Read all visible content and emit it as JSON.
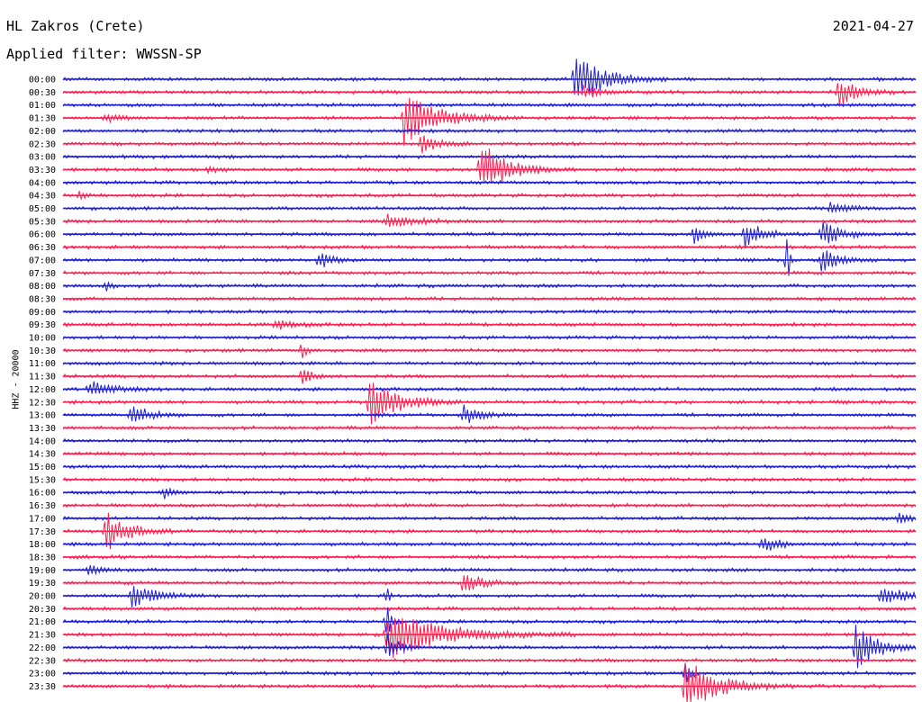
{
  "header": {
    "station": "HL Zakros (Crete)",
    "date": "2021-04-27",
    "filter": "Applied filter: WWSSN-SP"
  },
  "chart_data": {
    "type": "line",
    "title": "HL Zakros (Crete)",
    "subtitle": "Applied filter: WWSSN-SP",
    "date": "2021-04-27",
    "ylabel": "HHZ - 20000",
    "xlabel": "",
    "colors": {
      "even_row": "#1f1fd6",
      "odd_row": "#ff1f4f"
    },
    "minutes_per_row": 30,
    "rows": [
      {
        "time": "00:00",
        "events": [
          {
            "t": 0.6,
            "a": 1.0,
            "d": 0.05
          }
        ]
      },
      {
        "time": "00:30",
        "events": [
          {
            "t": 0.61,
            "a": 0.25,
            "d": 0.03
          },
          {
            "t": 0.91,
            "a": 0.55,
            "d": 0.03
          }
        ]
      },
      {
        "time": "01:00",
        "events": []
      },
      {
        "time": "01:30",
        "events": [
          {
            "t": 0.4,
            "a": 1.0,
            "d": 0.06
          },
          {
            "t": 0.05,
            "a": 0.15,
            "d": 0.02
          }
        ]
      },
      {
        "time": "02:00",
        "events": []
      },
      {
        "time": "02:30",
        "events": [
          {
            "t": 0.42,
            "a": 0.35,
            "d": 0.03
          }
        ]
      },
      {
        "time": "03:00",
        "events": []
      },
      {
        "time": "03:30",
        "events": [
          {
            "t": 0.49,
            "a": 1.0,
            "d": 0.05
          },
          {
            "t": 0.17,
            "a": 0.15,
            "d": 0.02
          }
        ]
      },
      {
        "time": "04:00",
        "events": []
      },
      {
        "time": "04:30",
        "events": [
          {
            "t": 0.02,
            "a": 0.2,
            "d": 0.01
          }
        ]
      },
      {
        "time": "05:00",
        "events": [
          {
            "t": 0.9,
            "a": 0.2,
            "d": 0.03
          }
        ]
      },
      {
        "time": "05:30",
        "events": [
          {
            "t": 0.38,
            "a": 0.25,
            "d": 0.05
          }
        ]
      },
      {
        "time": "06:00",
        "events": [
          {
            "t": 0.8,
            "a": 0.55,
            "d": 0.03
          },
          {
            "t": 0.89,
            "a": 0.55,
            "d": 0.03
          },
          {
            "t": 0.74,
            "a": 0.3,
            "d": 0.02
          }
        ]
      },
      {
        "time": "06:30",
        "events": []
      },
      {
        "time": "07:00",
        "events": [
          {
            "t": 0.3,
            "a": 0.35,
            "d": 0.02
          },
          {
            "t": 0.89,
            "a": 0.45,
            "d": 0.03
          },
          {
            "t": 0.85,
            "a": 1.0,
            "d": 0.003
          }
        ]
      },
      {
        "time": "07:30",
        "events": []
      },
      {
        "time": "08:00",
        "events": [
          {
            "t": 0.05,
            "a": 0.25,
            "d": 0.01
          }
        ]
      },
      {
        "time": "08:30",
        "events": []
      },
      {
        "time": "09:00",
        "events": []
      },
      {
        "time": "09:30",
        "events": [
          {
            "t": 0.25,
            "a": 0.2,
            "d": 0.03
          }
        ]
      },
      {
        "time": "10:00",
        "events": []
      },
      {
        "time": "10:30",
        "events": [
          {
            "t": 0.28,
            "a": 0.35,
            "d": 0.01
          }
        ]
      },
      {
        "time": "11:00",
        "events": []
      },
      {
        "time": "11:30",
        "events": [
          {
            "t": 0.28,
            "a": 0.3,
            "d": 0.02
          }
        ]
      },
      {
        "time": "12:00",
        "events": [
          {
            "t": 0.03,
            "a": 0.3,
            "d": 0.04
          }
        ]
      },
      {
        "time": "12:30",
        "events": [
          {
            "t": 0.36,
            "a": 0.9,
            "d": 0.05
          }
        ]
      },
      {
        "time": "13:00",
        "events": [
          {
            "t": 0.08,
            "a": 0.45,
            "d": 0.03
          },
          {
            "t": 0.47,
            "a": 0.35,
            "d": 0.03
          }
        ]
      },
      {
        "time": "13:30",
        "events": []
      },
      {
        "time": "14:00",
        "events": []
      },
      {
        "time": "14:30",
        "events": []
      },
      {
        "time": "15:00",
        "events": []
      },
      {
        "time": "15:30",
        "events": []
      },
      {
        "time": "16:00",
        "events": [
          {
            "t": 0.12,
            "a": 0.3,
            "d": 0.01
          }
        ]
      },
      {
        "time": "16:30",
        "events": []
      },
      {
        "time": "17:00",
        "events": [
          {
            "t": 0.98,
            "a": 0.25,
            "d": 0.02
          }
        ]
      },
      {
        "time": "17:30",
        "events": [
          {
            "t": 0.05,
            "a": 0.75,
            "d": 0.04
          }
        ]
      },
      {
        "time": "18:00",
        "events": [
          {
            "t": 0.82,
            "a": 0.3,
            "d": 0.03
          }
        ]
      },
      {
        "time": "18:30",
        "events": []
      },
      {
        "time": "19:00",
        "events": [
          {
            "t": 0.03,
            "a": 0.2,
            "d": 0.02
          }
        ]
      },
      {
        "time": "19:30",
        "events": [
          {
            "t": 0.47,
            "a": 0.5,
            "d": 0.03
          }
        ]
      },
      {
        "time": "20:00",
        "events": [
          {
            "t": 0.08,
            "a": 0.45,
            "d": 0.04
          },
          {
            "t": 0.96,
            "a": 0.4,
            "d": 0.04
          },
          {
            "t": 0.38,
            "a": 0.35,
            "d": 0.005
          }
        ]
      },
      {
        "time": "20:30",
        "events": []
      },
      {
        "time": "21:00",
        "events": [
          {
            "t": 0.38,
            "a": 0.6,
            "d": 0.01
          }
        ]
      },
      {
        "time": "21:30",
        "events": [
          {
            "t": 0.38,
            "a": 1.0,
            "d": 0.1
          }
        ]
      },
      {
        "time": "22:00",
        "events": [
          {
            "t": 0.93,
            "a": 0.85,
            "d": 0.04
          },
          {
            "t": 0.38,
            "a": 0.6,
            "d": 0.02
          }
        ]
      },
      {
        "time": "22:30",
        "events": []
      },
      {
        "time": "23:00",
        "events": [
          {
            "t": 0.73,
            "a": 0.45,
            "d": 0.01
          }
        ]
      },
      {
        "time": "23:30",
        "events": [
          {
            "t": 0.73,
            "a": 1.0,
            "d": 0.06
          }
        ]
      }
    ]
  }
}
